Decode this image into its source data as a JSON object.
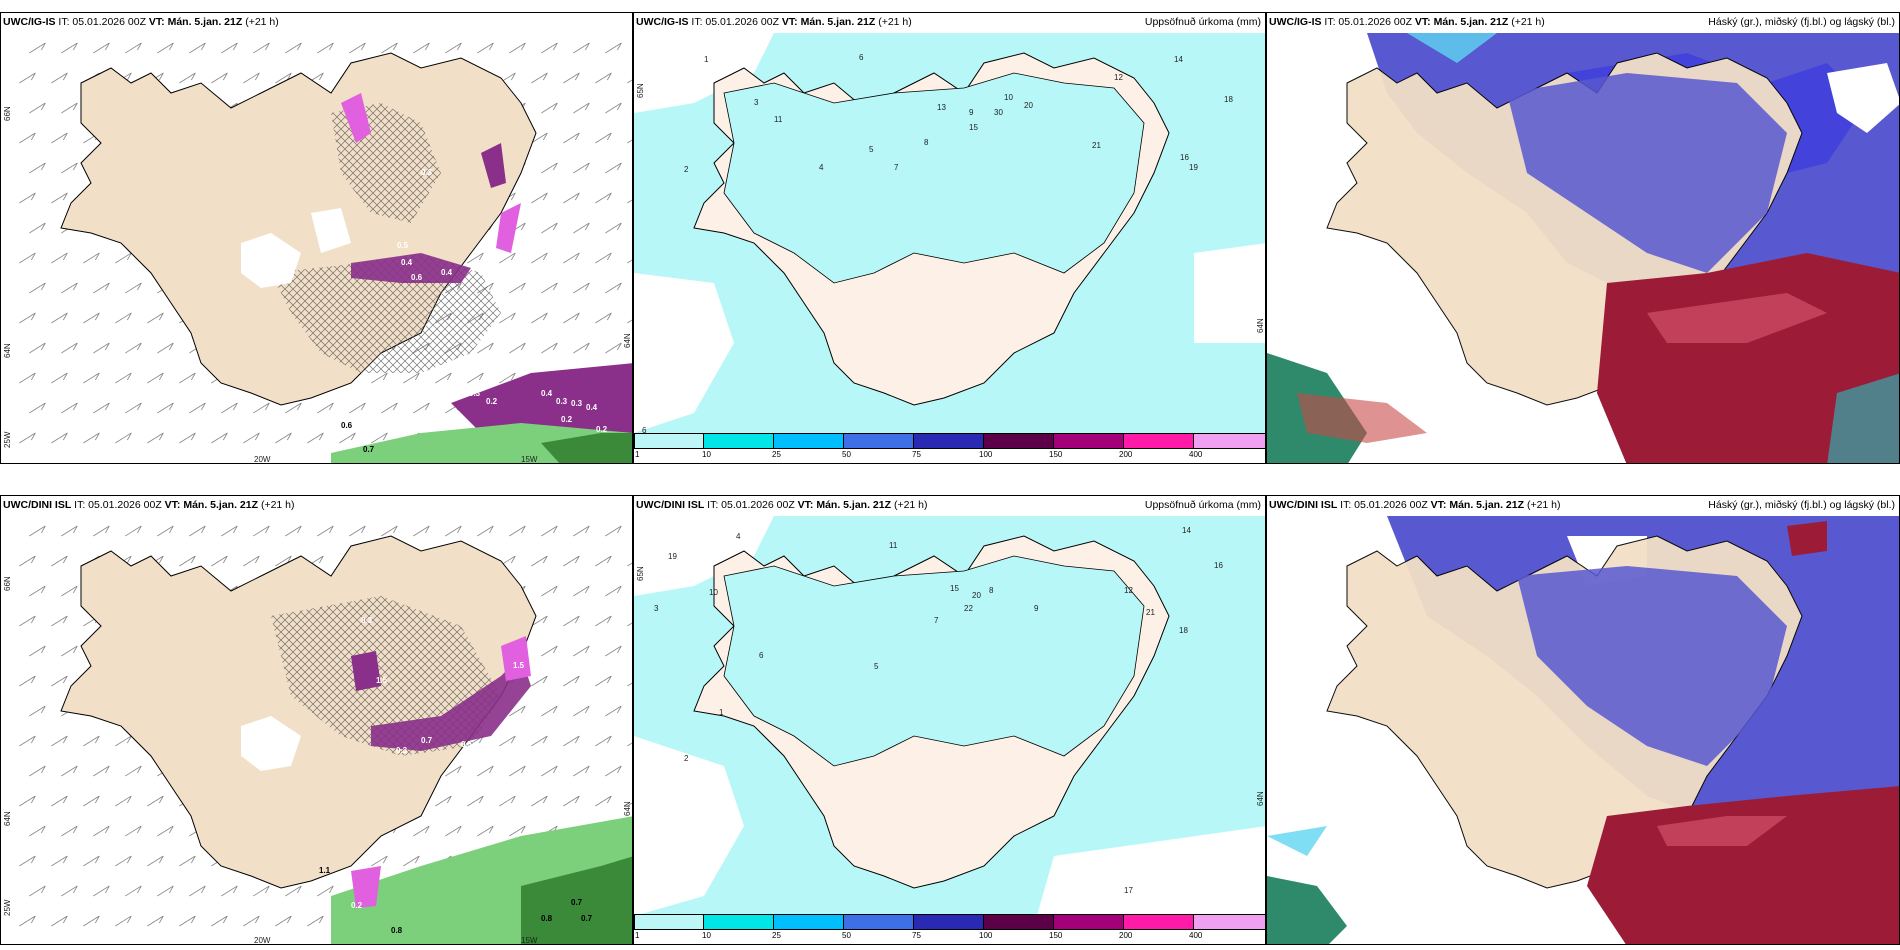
{
  "panels": [
    {
      "id": "top-left",
      "title_model": "UWC/IG-IS",
      "title_it": "IT: 05.01.2026 00Z",
      "title_vt_label": "VT: Mán. 5.jan. 21Z",
      "title_lead": "(+21 h)",
      "right_title": "",
      "axis_labels": {
        "lat1": "66N",
        "lat2": "64N",
        "lat3": "25W",
        "lon1": "20W",
        "lon2": "15W",
        "right": "64N"
      },
      "values": [
        "0.3",
        "0.2",
        "0.4",
        "0.2",
        "0.3",
        "0.3",
        "0.4",
        "0.4",
        "0.6",
        "0.7",
        "0.2",
        "0.6",
        "0.4",
        "0.5",
        "0.3"
      ]
    },
    {
      "id": "top-middle",
      "title_model": "UWC/IG-IS",
      "title_it": "IT: 05.01.2026 00Z",
      "title_vt_label": "VT: Mán. 5.jan. 21Z",
      "title_lead": "(+21 h)",
      "right_title": "Uppsöfnuð úrkoma (mm)",
      "axis_labels": {
        "lat": "65N",
        "right": "64N",
        "corner": "6"
      },
      "values": [
        "1",
        "2",
        "3",
        "4",
        "5",
        "6",
        "7",
        "8",
        "9",
        "10",
        "11",
        "12",
        "13",
        "15",
        "18",
        "19",
        "20",
        "21",
        "30",
        "16",
        "14"
      ]
    },
    {
      "id": "top-right",
      "title_model": "UWC/IG-IS",
      "title_it": "IT: 05.01.2026 00Z",
      "title_vt_label": "VT: Mán. 5.jan. 21Z",
      "title_lead": "(+21 h)",
      "right_title": "Háský (gr.), miðský (fj.bl.) og lágský (bl.)"
    },
    {
      "id": "bottom-left",
      "title_model": "UWC/DINI ISL",
      "title_it": "IT: 05.01.2026 00Z",
      "title_vt_label": "VT: Mán. 5.jan. 21Z",
      "title_lead": "(+21 h)",
      "right_title": "",
      "axis_labels": {
        "lat1": "66N",
        "lat2": "64N",
        "lat3": "25W",
        "lon1": "20W",
        "lon2": "15W",
        "right": "64N"
      },
      "values": [
        "1.5",
        "0.3",
        "0.7",
        "0.5",
        "0.8",
        "0.8",
        "0.7",
        "0.7",
        "1.1",
        "1.5",
        "0.2",
        "0.3",
        "1.2"
      ]
    },
    {
      "id": "bottom-middle",
      "title_model": "UWC/DINI ISL",
      "title_it": "IT: 05.01.2026 00Z",
      "title_vt_label": "VT: Mán. 5.jan. 21Z",
      "title_lead": "(+21 h)",
      "right_title": "Uppsöfnuð úrkoma (mm)",
      "axis_labels": {
        "lat": "65N",
        "right": "64N"
      },
      "values": [
        "1",
        "2",
        "3",
        "4",
        "5",
        "6",
        "7",
        "8",
        "9",
        "10",
        "11",
        "12",
        "14",
        "15",
        "16",
        "17",
        "19",
        "20",
        "21",
        "22",
        "18"
      ]
    },
    {
      "id": "bottom-right",
      "title_model": "UWC/DINI ISL",
      "title_it": "IT: 05.01.2026 00Z",
      "title_vt_label": "VT: Mán. 5.jan. 21Z",
      "title_lead": "(+21 h)",
      "right_title": "Háský (gr.), miðský (fj.bl.) og lágský (bl.)"
    }
  ],
  "colorbar": {
    "ticks": [
      "1",
      "10",
      "25",
      "50",
      "75",
      "100",
      "150",
      "200",
      "400"
    ],
    "colors": [
      "#bdf6f6",
      "#00e5e5",
      "#00bfff",
      "#3d6fe6",
      "#2929b3",
      "#5c0047",
      "#a3007a",
      "#ff1aa8",
      "#f0a0f0"
    ]
  },
  "colors": {
    "land": "#f2dfc7",
    "precip_light": "#b7f7f7",
    "land_mid": "#fdf0e6",
    "cloud_low": "#5858d0",
    "cloud_mid": "#3a3ae0",
    "cloud_high": "#9c1c38",
    "green": "#7cd07c",
    "purple": "#8a2f8a",
    "magenta": "#e060e0"
  }
}
